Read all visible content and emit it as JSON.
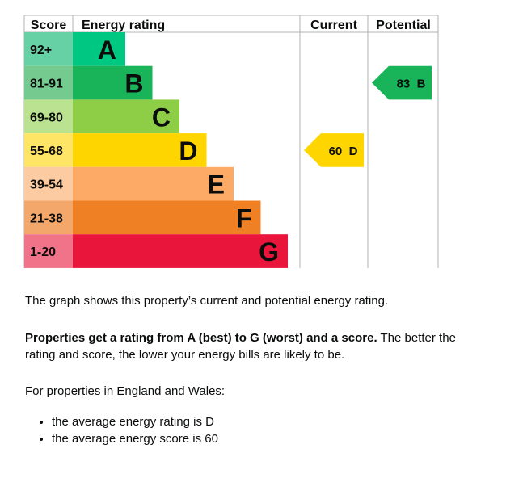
{
  "chart_data": {
    "type": "bar",
    "headers": {
      "score": "Score",
      "rating": "Energy rating",
      "current": "Current",
      "potential": "Potential"
    },
    "bands": [
      {
        "letter": "A",
        "range": "92+",
        "color": "#00c781",
        "score_color": "#67d1a6"
      },
      {
        "letter": "B",
        "range": "81-91",
        "color": "#19b459",
        "score_color": "#75cb8f"
      },
      {
        "letter": "C",
        "range": "69-80",
        "color": "#8dce46",
        "score_color": "#bbe290"
      },
      {
        "letter": "D",
        "range": "55-68",
        "color": "#ffd500",
        "score_color": "#ffe566"
      },
      {
        "letter": "E",
        "range": "39-54",
        "color": "#fcaa65",
        "score_color": "#fdcba2"
      },
      {
        "letter": "F",
        "range": "21-38",
        "color": "#ef8023",
        "score_color": "#f4a76a"
      },
      {
        "letter": "G",
        "range": "1-20",
        "color": "#e9153b",
        "score_color": "#f17389"
      }
    ],
    "current": {
      "score": 60,
      "band": "D",
      "label": "60  D"
    },
    "potential": {
      "score": 83,
      "band": "B",
      "label": "83  B"
    }
  },
  "text": {
    "intro": "The graph shows this property’s current and potential energy rating.",
    "bold": "Properties get a rating from A (best) to G (worst) and a score.",
    "rest": " The better the rating and score, the lower your energy bills are likely to be.",
    "region": "For properties in England and Wales:",
    "bullets": [
      "the average energy rating is D",
      "the average energy score is 60"
    ]
  }
}
